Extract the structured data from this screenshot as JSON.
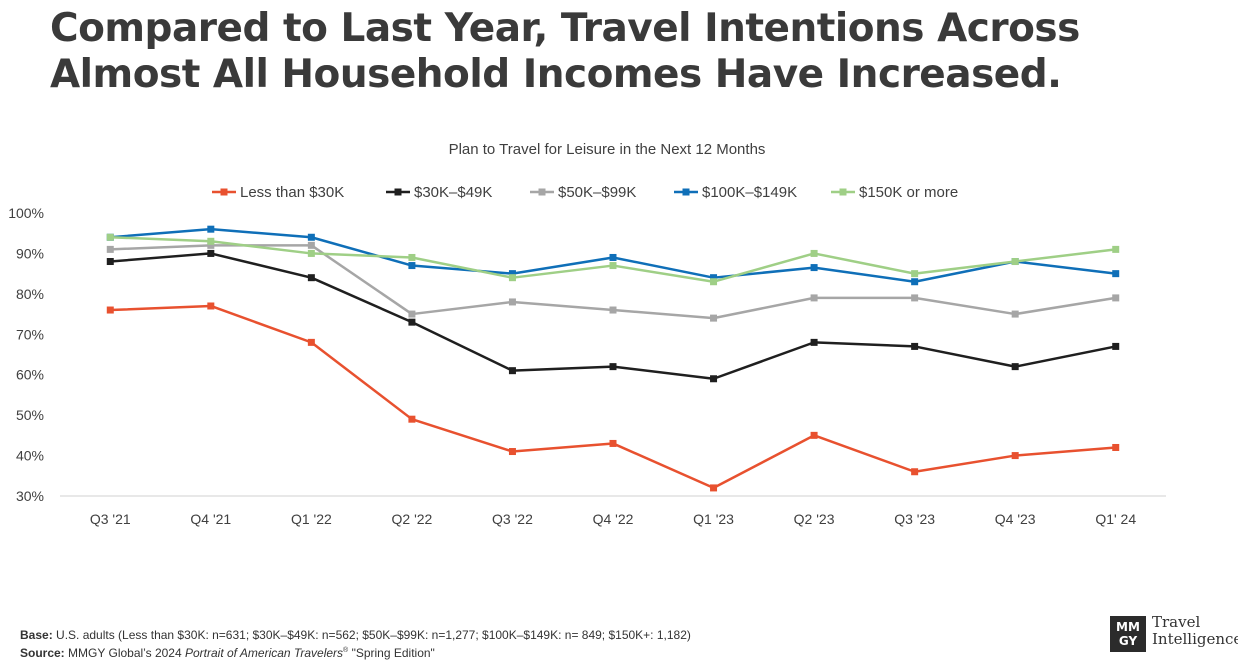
{
  "headline": {
    "line1": "Compared to Last Year, Travel Intentions Across",
    "line2": "Almost All Household Incomes Have Increased."
  },
  "chart_data": {
    "type": "line",
    "title": "Plan to Travel for Leisure in the Next 12 Months",
    "xlabel": "",
    "ylabel": "",
    "legend_position": "top",
    "grid": false,
    "categories": [
      "Q3 '21",
      "Q4 '21",
      "Q1 '22",
      "Q2 '22",
      "Q3 '22",
      "Q4 '22",
      "Q1 '23",
      "Q2 '23",
      "Q3 '23",
      "Q4 '23",
      "Q1' 24"
    ],
    "ylim": [
      30,
      100
    ],
    "yticks": [
      30,
      40,
      50,
      60,
      70,
      80,
      90,
      100
    ],
    "ytick_labels": [
      "30%",
      "40%",
      "50%",
      "60%",
      "70%",
      "80%",
      "90%",
      "100%"
    ],
    "series": [
      {
        "name": "Less than $30K",
        "color": "#e8512f",
        "values": [
          76,
          77,
          68,
          49,
          41,
          43,
          32,
          45,
          36,
          40,
          42
        ]
      },
      {
        "name": "$30K–$49K",
        "color": "#1f1f1f",
        "values": [
          88,
          90,
          84,
          73,
          61,
          62,
          59,
          68,
          67,
          62,
          67
        ]
      },
      {
        "name": "$50K–$99K",
        "color": "#a6a6a6",
        "values": [
          91,
          92,
          92,
          75,
          78,
          76,
          74,
          79,
          79,
          75,
          79
        ]
      },
      {
        "name": "$100K–$149K",
        "color": "#0f6fb8",
        "values": [
          94,
          96,
          94,
          87,
          85,
          89,
          84,
          86.5,
          83,
          88,
          85
        ]
      },
      {
        "name": "$150K or more",
        "color": "#9fcf86",
        "values": [
          94,
          93,
          90,
          89,
          84,
          87,
          83,
          90,
          85,
          88,
          91
        ]
      }
    ]
  },
  "footnotes": {
    "base_label": "Base:",
    "base_text": "U.S. adults (Less than $30K: n=631; $30K–$49K: n=562; $50K–$99K: n=1,277; $100K–$149K: n= 849; $150K+: 1,182)",
    "source_label": "Source:",
    "source_text": "MMGY Global’s 2024",
    "source_title": "Portrait of American Travelers",
    "source_mark": "®",
    "source_edition": "\"Spring Edition\""
  },
  "logo": {
    "mark_top": "MM",
    "mark_bottom": "GY",
    "text_line1": "Travel",
    "text_line2": "Intelligence"
  }
}
